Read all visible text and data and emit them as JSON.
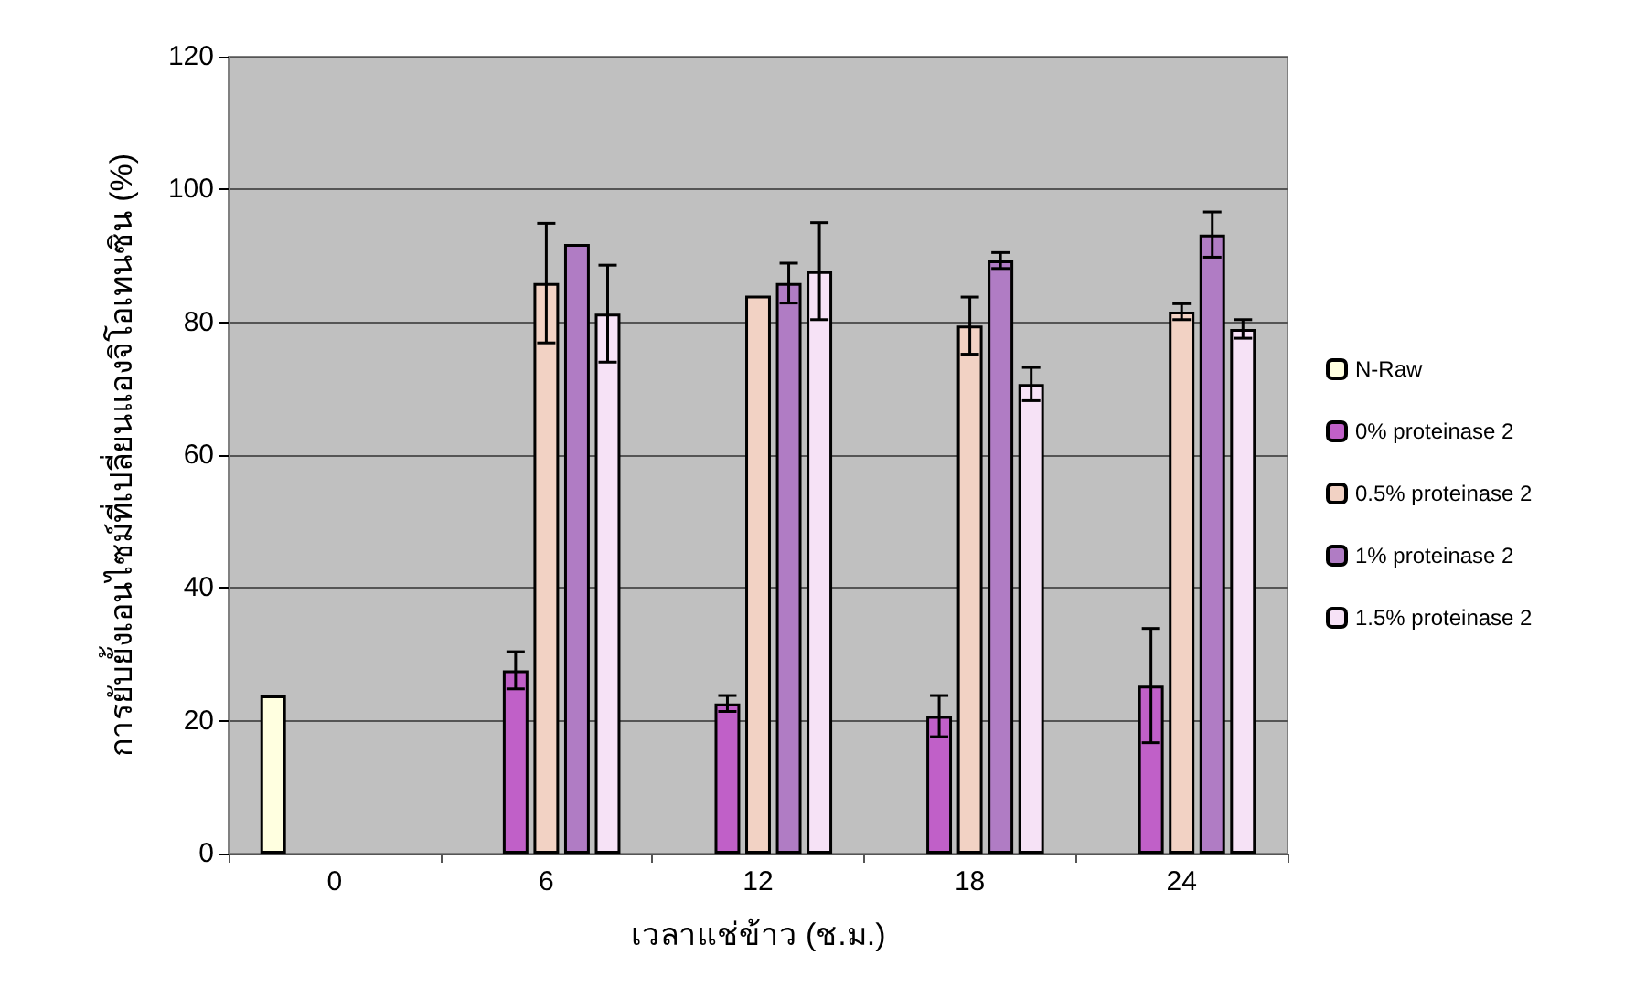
{
  "chart_data": {
    "type": "bar",
    "xlabel": "เวลาแช่ข้าว (ช.ม.)",
    "ylabel": "การยับยั้งเอนไซม์ที่เปลี่ยนแองจิโอเทนซิน (%)",
    "categories": [
      "0",
      "6",
      "12",
      "18",
      "24"
    ],
    "series": [
      {
        "name": "N-Raw",
        "color": "#ffffe0",
        "values": [
          23.8,
          null,
          null,
          null,
          null
        ]
      },
      {
        "name": "0% proteinase 2",
        "color": "#c060c8",
        "values": [
          null,
          27.6,
          22.6,
          20.7,
          25.3
        ],
        "errors": [
          null,
          2.8,
          1.2,
          3.1,
          8.6
        ]
      },
      {
        "name": "0.5% proteinase 2",
        "color": "#f2d2c4",
        "values": [
          null,
          85.9,
          84.0,
          79.5,
          81.6
        ],
        "errors": [
          null,
          9.0,
          null,
          4.3,
          1.2
        ]
      },
      {
        "name": "1% proteinase 2",
        "color": "#b07cc4",
        "values": [
          null,
          91.8,
          85.9,
          89.3,
          93.2
        ],
        "errors": [
          null,
          null,
          3.0,
          1.2,
          3.4
        ]
      },
      {
        "name": "1.5% proteinase 2",
        "color": "#f6e2f6",
        "values": [
          null,
          81.3,
          87.7,
          70.7,
          79.0
        ],
        "errors": [
          null,
          7.3,
          7.3,
          2.5,
          1.4
        ]
      }
    ],
    "ylim": [
      0,
      120
    ],
    "yticks": [
      0,
      20,
      40,
      60,
      80,
      100,
      120
    ],
    "grid": "y",
    "legend": "right"
  }
}
